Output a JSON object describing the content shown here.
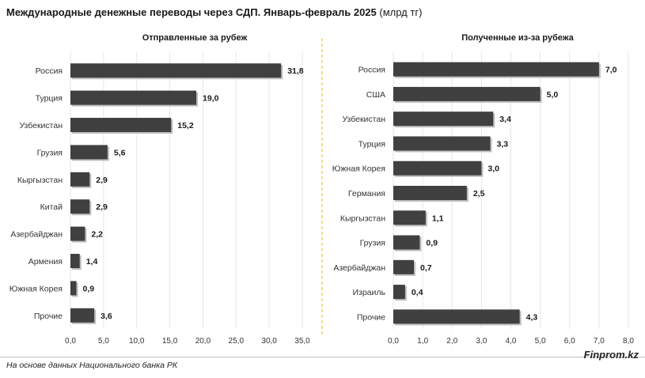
{
  "title": "Международные денежные переводы через СДП. Январь-февраль 2025",
  "title_unit": "(млрд тг)",
  "source": "На основе данных Национального банка РК",
  "brand": "Finprom.kz",
  "colors": {
    "bar": "#404040",
    "divider": "#f0b429",
    "grid": "#e6e6e6"
  },
  "chart_data": [
    {
      "type": "bar",
      "orientation": "horizontal",
      "title": "Отправленные за рубеж",
      "categories": [
        "Россия",
        "Турция",
        "Узбекистан",
        "Грузия",
        "Кыргызстан",
        "Китай",
        "Азербайджан",
        "Армения",
        "Южная Корея",
        "Прочие"
      ],
      "values": [
        31.8,
        19.0,
        15.2,
        5.6,
        2.9,
        2.9,
        2.2,
        1.4,
        0.9,
        3.6
      ],
      "value_labels": [
        "31,8",
        "19,0",
        "15,2",
        "5,6",
        "2,9",
        "2,9",
        "2,2",
        "1,4",
        "0,9",
        "3,6"
      ],
      "xlim": [
        0,
        35
      ],
      "ticks": [
        0,
        5,
        10,
        15,
        20,
        25,
        30,
        35
      ],
      "tick_labels": [
        "0,0",
        "5,0",
        "10,0",
        "15,0",
        "20,0",
        "25,0",
        "30,0",
        "35,0"
      ],
      "grid": true
    },
    {
      "type": "bar",
      "orientation": "horizontal",
      "title": "Полученные из-за рубежа",
      "categories": [
        "Россия",
        "США",
        "Узбекистан",
        "Турция",
        "Южная Корея",
        "Германия",
        "Кыргызстан",
        "Грузия",
        "Азербайджан",
        "Израиль",
        "Прочие"
      ],
      "values": [
        7.0,
        5.0,
        3.4,
        3.3,
        3.0,
        2.5,
        1.1,
        0.9,
        0.7,
        0.4,
        4.3
      ],
      "value_labels": [
        "7,0",
        "5,0",
        "3,4",
        "3,3",
        "3,0",
        "2,5",
        "1,1",
        "0,9",
        "0,7",
        "0,4",
        "4,3"
      ],
      "xlim": [
        0,
        8
      ],
      "ticks": [
        0,
        1,
        2,
        3,
        4,
        5,
        6,
        7,
        8
      ],
      "tick_labels": [
        "0,0",
        "1,0",
        "2,0",
        "3,0",
        "4,0",
        "5,0",
        "6,0",
        "7,0",
        "8,0"
      ],
      "grid": true
    }
  ]
}
